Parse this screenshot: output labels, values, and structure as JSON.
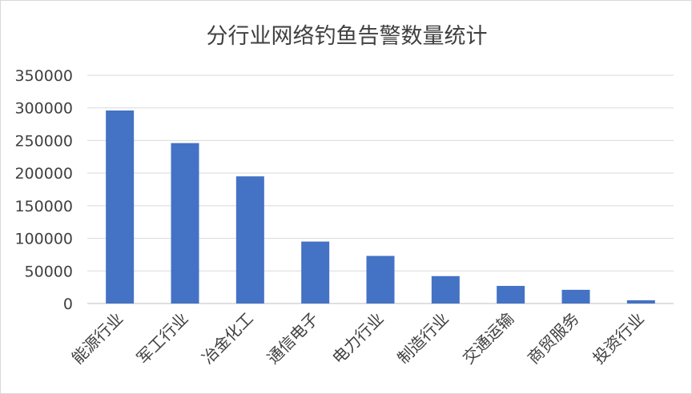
{
  "chart_data": {
    "type": "bar",
    "title": "分行业网络钓鱼告警数量统计",
    "categories": [
      "能源行业",
      "军工行业",
      "冶金化工",
      "通信电子",
      "电力行业",
      "制造行业",
      "交通运输",
      "商贸服务",
      "投资行业"
    ],
    "values": [
      296000,
      246000,
      195000,
      95000,
      73000,
      42000,
      27000,
      21000,
      5000
    ],
    "y_ticks": [
      "0",
      "50000",
      "100000",
      "150000",
      "200000",
      "250000",
      "300000",
      "350000"
    ],
    "ylim": [
      0,
      350000
    ],
    "xlabel": "",
    "ylabel": "",
    "grid": true,
    "bar_color": "#4472C4",
    "legend": "none"
  }
}
